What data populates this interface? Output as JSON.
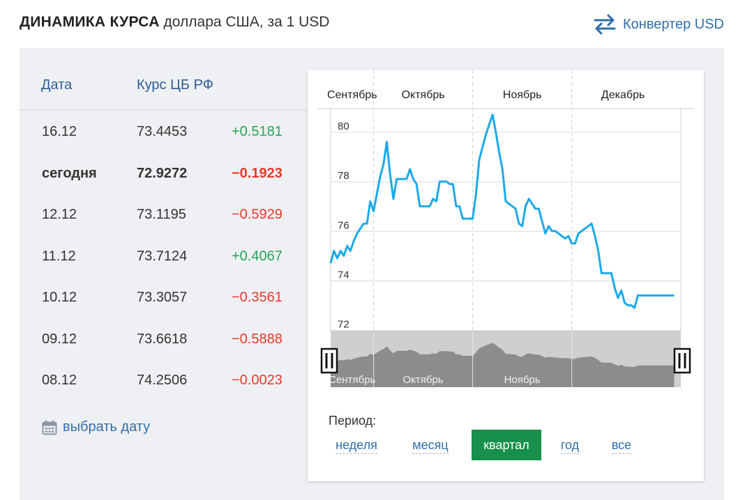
{
  "header": {
    "title_strong": "ДИНАМИКА КУРСА",
    "title_rest": "доллара США, за 1 USD",
    "converter_label": "Конвертер USD"
  },
  "table": {
    "col_date": "Дата",
    "col_rate": "Курс ЦБ РФ",
    "rows": [
      {
        "date": "16.12",
        "rate": "73.4453",
        "change": "+0.5181",
        "dir": "up",
        "bold": false
      },
      {
        "date": "сегодня",
        "rate": "72.9272",
        "change": "−0.1923",
        "dir": "down",
        "bold": true
      },
      {
        "date": "12.12",
        "rate": "73.1195",
        "change": "−0.5929",
        "dir": "down",
        "bold": false
      },
      {
        "date": "11.12",
        "rate": "73.7124",
        "change": "+0.4067",
        "dir": "up",
        "bold": false
      },
      {
        "date": "10.12",
        "rate": "73.3057",
        "change": "−0.3561",
        "dir": "down",
        "bold": false
      },
      {
        "date": "09.12",
        "rate": "73.6618",
        "change": "−0.5888",
        "dir": "down",
        "bold": false
      },
      {
        "date": "08.12",
        "rate": "74.2506",
        "change": "−0.0023",
        "dir": "down",
        "bold": false
      }
    ],
    "pick_date_label": "выбрать дату"
  },
  "colors": {
    "accent_link": "#2f6ea8",
    "up": "#27a35a",
    "down": "#e8392c",
    "line": "#1ba9ea",
    "active_period": "#16904a"
  },
  "period": {
    "label": "Период:",
    "options": [
      "неделя",
      "месяц",
      "квартал",
      "год",
      "все"
    ],
    "active": "квартал"
  },
  "chart_data": {
    "type": "line",
    "title": "",
    "ylabel": "",
    "xlabel": "",
    "ylim": [
      72,
      81
    ],
    "yticks": [
      72,
      74,
      76,
      78,
      80
    ],
    "month_labels": [
      "Сентябрь",
      "Октябрь",
      "Ноябрь",
      "Декабрь"
    ],
    "navigator_labels": [
      "Сентябрь",
      "Октябрь",
      "Ноябрь"
    ],
    "x_domain": [
      0,
      106
    ],
    "month_starts": [
      0,
      13,
      43,
      73,
      104
    ],
    "series": [
      {
        "name": "USD",
        "x": [
          0,
          1,
          2,
          3,
          4,
          5,
          6,
          7,
          8,
          9,
          10,
          11,
          12,
          13,
          14,
          15,
          16,
          17,
          18,
          19,
          20,
          21,
          22,
          23,
          24,
          25,
          26,
          27,
          28,
          29,
          30,
          31,
          32,
          33,
          34,
          35,
          36,
          37,
          38,
          39,
          40,
          41,
          42,
          43,
          44,
          45,
          46,
          47,
          48,
          49,
          50,
          51,
          52,
          53,
          54,
          55,
          56,
          57,
          58,
          59,
          60,
          61,
          62,
          63,
          64,
          65,
          66,
          67,
          68,
          69,
          70,
          71,
          72,
          73,
          74,
          75,
          76,
          77,
          78,
          79,
          80,
          81,
          82,
          83,
          84,
          85,
          86,
          87,
          88,
          89,
          90,
          91,
          92,
          93,
          94,
          95,
          96,
          97,
          98,
          99,
          100,
          101,
          102,
          103,
          104
        ],
        "values": [
          74.7,
          75.2,
          74.9,
          75.2,
          75.0,
          75.4,
          75.2,
          75.6,
          75.9,
          76.1,
          76.3,
          76.3,
          77.2,
          76.8,
          77.5,
          78.2,
          78.7,
          79.6,
          78.3,
          77.3,
          78.1,
          78.1,
          78.1,
          78.1,
          78.5,
          78.1,
          77.9,
          77.0,
          77.0,
          77.0,
          77.0,
          77.3,
          77.2,
          78.0,
          78.0,
          78.0,
          77.9,
          77.9,
          77.0,
          77.0,
          76.5,
          76.5,
          76.5,
          76.5,
          77.5,
          78.9,
          79.4,
          79.9,
          80.3,
          80.7,
          80.0,
          79.2,
          78.5,
          77.2,
          77.1,
          77.0,
          76.9,
          76.3,
          76.2,
          77.0,
          77.3,
          77.1,
          76.9,
          76.9,
          76.4,
          75.9,
          76.2,
          76.0,
          76.0,
          75.9,
          75.8,
          75.7,
          75.8,
          75.5,
          75.5,
          75.9,
          76.0,
          76.1,
          76.2,
          76.3,
          75.8,
          75.2,
          74.3,
          74.3,
          74.3,
          74.3,
          73.7,
          73.3,
          73.6,
          73.1,
          73.0,
          73.0,
          72.9,
          73.4,
          73.4,
          73.4,
          73.4,
          73.4,
          73.4,
          73.4,
          73.4,
          73.4,
          73.4,
          73.4,
          73.4
        ]
      }
    ]
  }
}
